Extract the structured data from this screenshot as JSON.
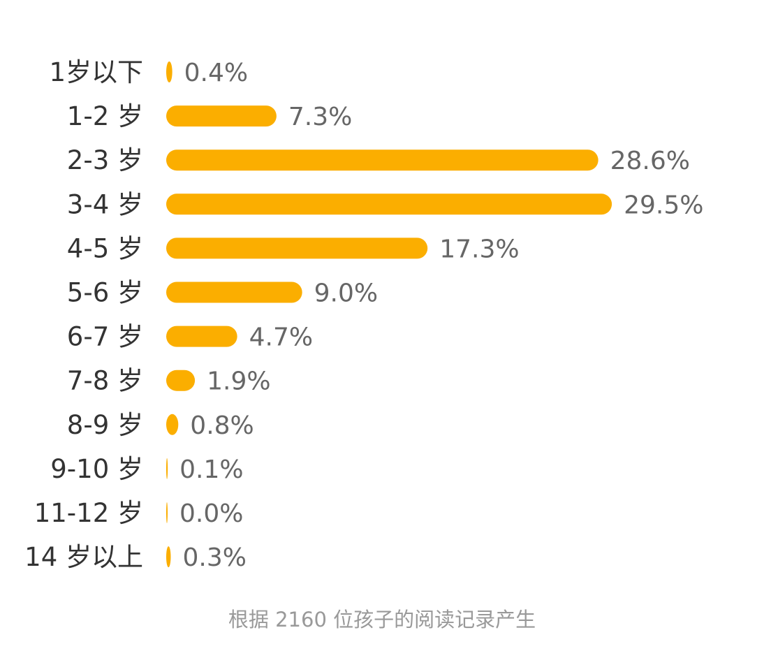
{
  "chart_data": {
    "type": "bar",
    "orientation": "horizontal",
    "categories": [
      "1岁以下",
      "1-2 岁",
      "2-3 岁",
      "3-4 岁",
      "4-5 岁",
      "5-6 岁",
      "6-7 岁",
      "7-8 岁",
      "8-9 岁",
      "9-10 岁",
      "11-12 岁",
      "14 岁以上"
    ],
    "values": [
      0.4,
      7.3,
      28.6,
      29.5,
      17.3,
      9.0,
      4.7,
      1.9,
      0.8,
      0.1,
      0.0,
      0.3
    ],
    "value_labels": [
      "0.4%",
      "7.3%",
      "28.6%",
      "29.5%",
      "17.3%",
      "9.0%",
      "4.7%",
      "1.9%",
      "0.8%",
      "0.1%",
      "0.0%",
      "0.3%"
    ],
    "unit": "%",
    "grid": false,
    "bar_color": "#FBAE00",
    "footnote": "根据 2160 位孩子的阅读记录产生"
  }
}
